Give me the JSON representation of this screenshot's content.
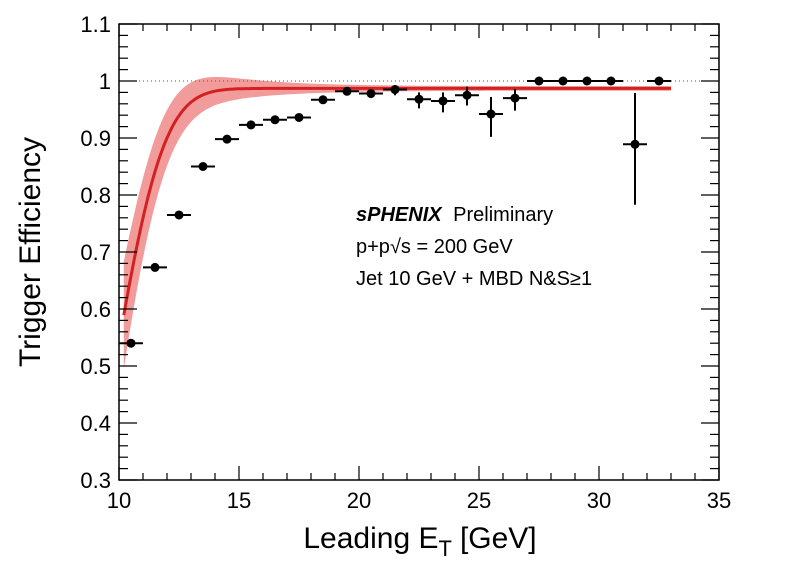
{
  "chart_data": {
    "type": "scatter",
    "xlabel": "Leading E",
    "xlabel_sub": "T",
    "xlabel_unit": "[GeV]",
    "ylabel": "Trigger Efficiency",
    "xlim": [
      10,
      35
    ],
    "ylim": [
      0.3,
      1.1
    ],
    "x_ticks": [
      "10",
      "15",
      "20",
      "25",
      "30",
      "35"
    ],
    "x_tick_values": [
      10,
      15,
      20,
      25,
      30,
      35
    ],
    "y_ticks": [
      "0.3",
      "0.4",
      "0.5",
      "0.6",
      "0.7",
      "0.8",
      "0.9",
      "1",
      "1.1"
    ],
    "y_tick_values": [
      0.3,
      0.4,
      0.5,
      0.6,
      0.7,
      0.8,
      0.9,
      1.0,
      1.1
    ],
    "reference_line": {
      "y": 1.0,
      "style": "dotted"
    },
    "annotations": {
      "experiment": "sPHENIX",
      "status": "Preliminary",
      "system": "p+p",
      "energy": "√s = 200 GeV",
      "trigger": "Jet 10 GeV + MBD N&S≥1"
    },
    "series": [
      {
        "type": "points",
        "color": "#000000",
        "x": [
          10.5,
          11.5,
          12.5,
          13.5,
          14.5,
          15.5,
          16.5,
          17.5,
          18.5,
          19.5,
          20.5,
          21.5,
          22.5,
          23.5,
          24.5,
          25.5,
          26.5,
          27.5,
          28.5,
          29.5,
          30.5,
          31.5,
          32.5
        ],
        "y": [
          0.54,
          0.673,
          0.765,
          0.85,
          0.898,
          0.923,
          0.932,
          0.936,
          0.967,
          0.982,
          0.978,
          0.985,
          0.968,
          0.965,
          0.975,
          0.942,
          0.97,
          1.0,
          1.0,
          1.0,
          1.0,
          0.889,
          1.0
        ],
        "yerr_low": [
          0.005,
          0.005,
          0.005,
          0.004,
          0.004,
          0.004,
          0.004,
          0.005,
          0.005,
          0.006,
          0.008,
          0.01,
          0.016,
          0.02,
          0.018,
          0.04,
          0.022,
          0.0,
          0.0,
          0.0,
          0.0,
          0.106,
          0.0
        ],
        "yerr_high": [
          0.005,
          0.005,
          0.005,
          0.004,
          0.004,
          0.004,
          0.004,
          0.005,
          0.005,
          0.006,
          0.008,
          0.008,
          0.012,
          0.015,
          0.015,
          0.03,
          0.016,
          0.0,
          0.0,
          0.0,
          0.0,
          0.09,
          0.0
        ],
        "xerr": 0.5
      },
      {
        "type": "fit",
        "color": "#d42020",
        "band_color": "#ee8a8a",
        "x_range": [
          10.2,
          33
        ],
        "plateau": 0.987,
        "center": 9.8,
        "width": 2.3,
        "band_halfwidth_at_start": 0.09
      }
    ]
  }
}
